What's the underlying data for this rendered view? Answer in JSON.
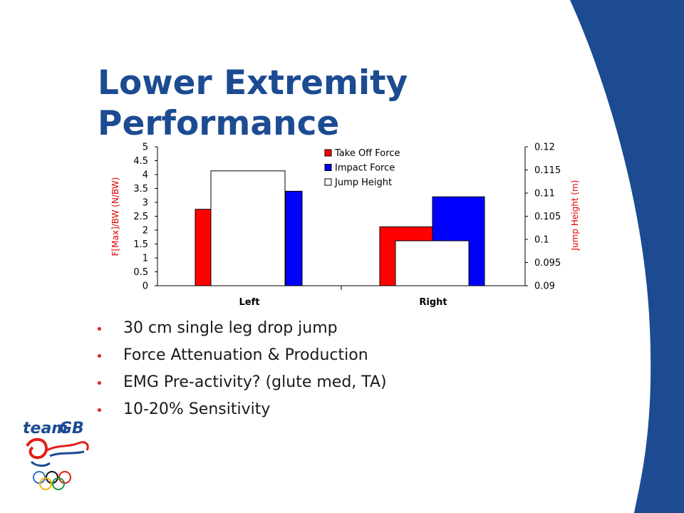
{
  "slide": {
    "title": "Lower Extremity Performance",
    "bullets": [
      "30 cm single leg drop jump",
      "Force Attenuation & Production",
      "EMG Pre-activity? (glute med, TA)",
      "10-20% Sensitivity"
    ],
    "logo": {
      "word1": "team",
      "word2": "GB"
    }
  },
  "colors": {
    "title": "#1c4b92",
    "curve": "#1c4b92",
    "bullet": "#e0201b",
    "take_off": "#ff0000",
    "impact": "#0000ff",
    "jump": "#ffffff",
    "left_axis_label": "#e00000",
    "right_axis_label": "#e00000"
  },
  "chart_data": {
    "type": "bar",
    "categories": [
      "Left",
      "Right"
    ],
    "series": [
      {
        "name": "Take Off Force",
        "axis": "left",
        "values": [
          2.75,
          2.12
        ]
      },
      {
        "name": "Impact Force",
        "axis": "left",
        "values": [
          3.4,
          3.2
        ]
      },
      {
        "name": "Jump Height",
        "axis": "right",
        "values": [
          0.1148,
          0.0997
        ]
      }
    ],
    "ylabel": "F[Max]/BW (N/BW)",
    "ylabel_right": "Jump Height (m)",
    "ylim": [
      0,
      5
    ],
    "ylim_right": [
      0.09,
      0.12
    ],
    "yticks": [
      "0",
      "0.5",
      "1",
      "1.5",
      "2",
      "2.5",
      "3",
      "3.5",
      "4",
      "4.5",
      "5"
    ],
    "yticks_right": [
      "0.09",
      "0.095",
      "0.1",
      "0.105",
      "0.11",
      "0.115",
      "0.12"
    ],
    "grid": false,
    "legend": "top-right"
  }
}
